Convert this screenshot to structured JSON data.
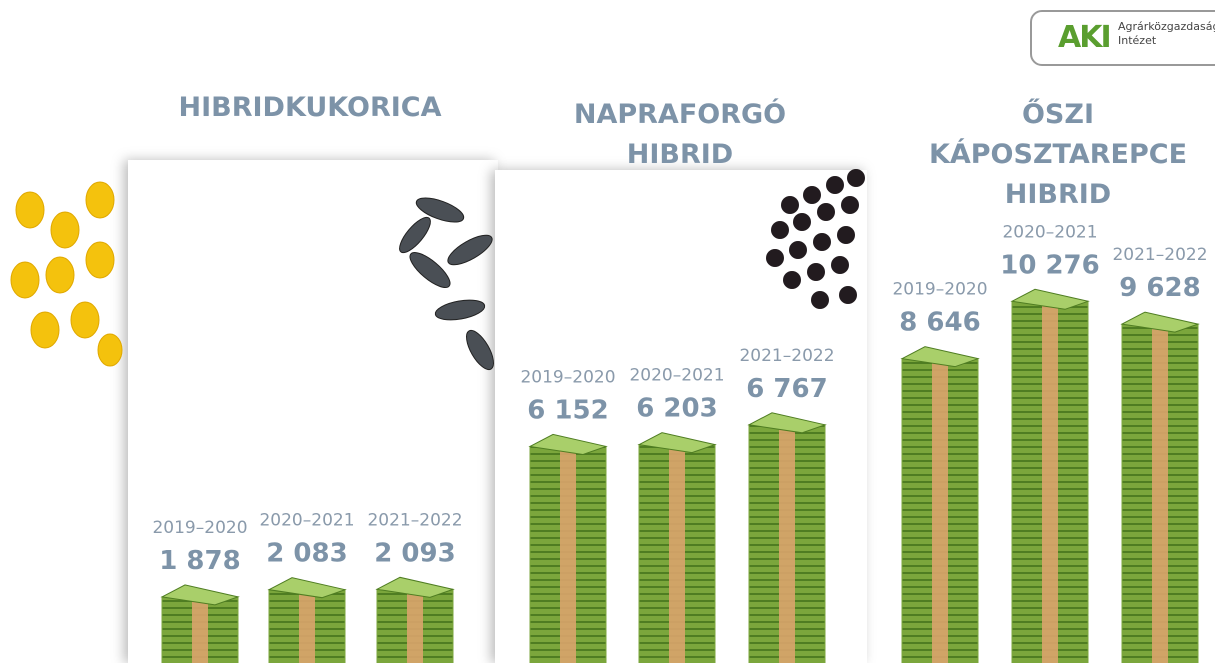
{
  "logo": {
    "mark": "AKI",
    "line1": "Agrárközgazdasági",
    "line2": "Intézet"
  },
  "chart_data": [
    {
      "type": "bar",
      "title": "HIBRIDKUKORICA",
      "categories": [
        "2019–2020",
        "2020–2021",
        "2021–2022"
      ],
      "values": [
        1878,
        2083,
        2093
      ],
      "value_labels": [
        "1 878",
        "2 083",
        "2 093"
      ],
      "color": "#7ba63c"
    },
    {
      "type": "bar",
      "title": "NAPRAFORGÓ HIBRID",
      "categories": [
        "2019–2020",
        "2020–2021",
        "2021–2022"
      ],
      "values": [
        6152,
        6203,
        6767
      ],
      "value_labels": [
        "6 152",
        "6 203",
        "6 767"
      ],
      "color": "#7ba63c"
    },
    {
      "type": "bar",
      "title": "ŐSZI KÁPOSZTAREPCE HIBRID",
      "categories": [
        "2019–2020",
        "2020–2021",
        "2021–2022"
      ],
      "values": [
        8646,
        10276,
        9628
      ],
      "value_labels": [
        "8 646",
        "10 276",
        "9 628"
      ],
      "color": "#7ba63c"
    }
  ]
}
